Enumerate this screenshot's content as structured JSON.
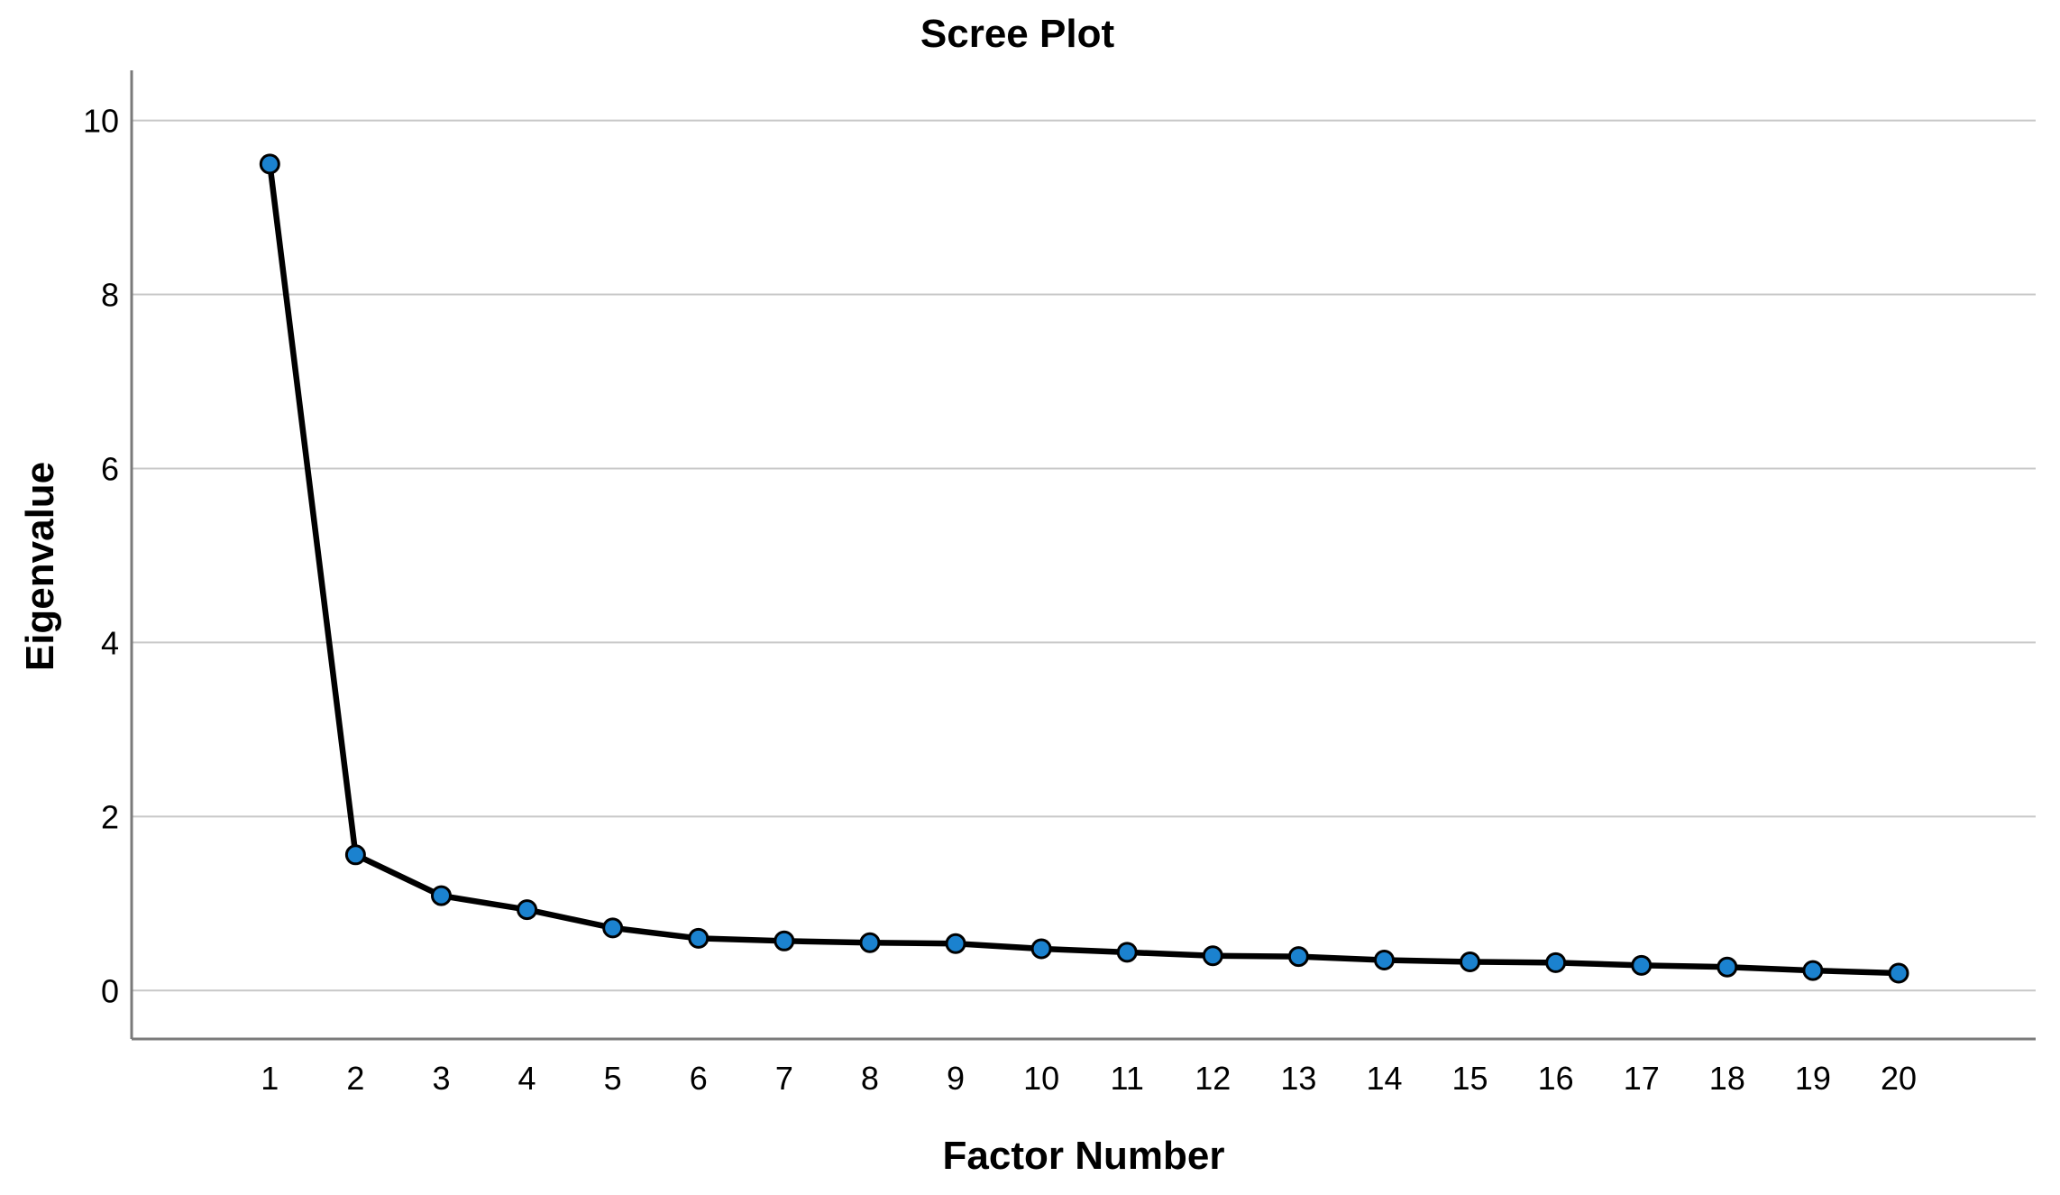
{
  "figure": {
    "title": "Scree Plot",
    "xlabel": "Factor Number",
    "ylabel": "Eigenvalue"
  },
  "chart_data": {
    "type": "line",
    "title": "Scree Plot",
    "xlabel": "Factor Number",
    "ylabel": "Eigenvalue",
    "x": [
      1,
      2,
      3,
      4,
      5,
      6,
      7,
      8,
      9,
      10,
      11,
      12,
      13,
      14,
      15,
      16,
      17,
      18,
      19,
      20
    ],
    "values": [
      9.5,
      1.56,
      1.09,
      0.93,
      0.72,
      0.6,
      0.57,
      0.55,
      0.54,
      0.48,
      0.44,
      0.4,
      0.39,
      0.35,
      0.33,
      0.32,
      0.29,
      0.27,
      0.23,
      0.2
    ],
    "y_ticks": [
      0,
      2,
      4,
      6,
      8,
      10
    ],
    "ylim": [
      -0.56,
      10.58
    ],
    "xlim": [
      -0.6,
      21.6
    ],
    "grid": "horizontal-only",
    "legend": "none",
    "marker": "circle",
    "colors": {
      "marker_fill": "#1B82CF",
      "marker_stroke": "#000000",
      "line": "#000000",
      "gridline": "#C8C8C8",
      "axis": "#7A7A7A",
      "text": "#000000",
      "background": "#FFFFFF"
    }
  }
}
